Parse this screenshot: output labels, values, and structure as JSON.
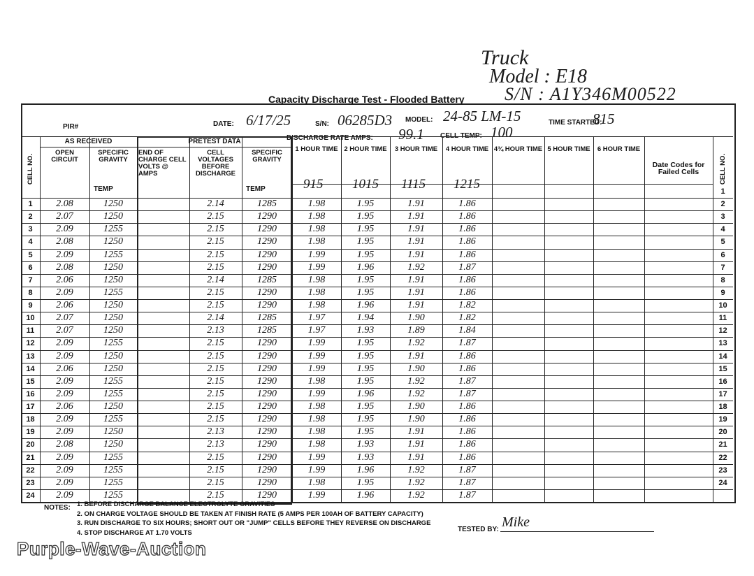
{
  "handwritten_note": {
    "line1": "Truck",
    "line2": "Model : E18",
    "line3": "S/N : A1Y346M00522"
  },
  "header": {
    "title": "Capacity Discharge Test - Flooded Battery",
    "fields": [
      {
        "label": "PIR#"
      },
      {
        "label": "DATE:",
        "value": "6/17/25"
      },
      {
        "label": "S/N:",
        "value": "06285D3"
      },
      {
        "label": "MODEL:",
        "value": "24-85 LM-15"
      },
      {
        "label": "TIME STARTED:",
        "value": "815"
      },
      {
        "label": "DISCHARGE RATE AMPS:",
        "value": "99.1"
      },
      {
        "label": "CELL TEMP:",
        "value": "100"
      }
    ]
  },
  "table": {
    "groups": [
      "AS RECEIVED",
      "PRETEST DATA"
    ],
    "columns": [
      {
        "label": "CELL NO."
      },
      {
        "label": "OPEN CIRCUIT"
      },
      {
        "label": "SPECIFIC GRAVITY",
        "sub": "TEMP"
      },
      {
        "label": "END OF CHARGE CELL VOLTS @ AMPS"
      },
      {
        "label": "CELL VOLTAGES BEFORE DISCHARGE"
      },
      {
        "label": "SPECIFIC GRAVITY",
        "sub": "TEMP"
      },
      {
        "label": "1 HOUR TIME",
        "time": "915"
      },
      {
        "label": "2 HOUR TIME",
        "time": "1015"
      },
      {
        "label": "3 HOUR TIME",
        "time": "1115"
      },
      {
        "label": "4 HOUR TIME",
        "time": "1215"
      },
      {
        "label": "4¾ HOUR TIME"
      },
      {
        "label": "5 HOUR TIME"
      },
      {
        "label": "6 HOUR TIME"
      },
      {
        "label": "Date Codes for Failed Cells"
      },
      {
        "label": "CELL NO."
      }
    ],
    "rows": [
      [
        "1",
        "2.08",
        "1250",
        "2.14",
        "1285",
        "1.98",
        "1.95",
        "1.91",
        "1.86"
      ],
      [
        "2",
        "2.07",
        "1250",
        "2.15",
        "1290",
        "1.98",
        "1.95",
        "1.91",
        "1.86"
      ],
      [
        "3",
        "2.09",
        "1255",
        "2.15",
        "1290",
        "1.98",
        "1.95",
        "1.91",
        "1.86"
      ],
      [
        "4",
        "2.08",
        "1250",
        "2.15",
        "1290",
        "1.98",
        "1.95",
        "1.91",
        "1.86"
      ],
      [
        "5",
        "2.09",
        "1255",
        "2.15",
        "1290",
        "1.99",
        "1.95",
        "1.91",
        "1.86"
      ],
      [
        "6",
        "2.08",
        "1250",
        "2.15",
        "1290",
        "1.99",
        "1.96",
        "1.92",
        "1.87"
      ],
      [
        "7",
        "2.06",
        "1250",
        "2.14",
        "1285",
        "1.98",
        "1.95",
        "1.91",
        "1.86"
      ],
      [
        "8",
        "2.09",
        "1255",
        "2.15",
        "1290",
        "1.98",
        "1.95",
        "1.91",
        "1.86"
      ],
      [
        "9",
        "2.06",
        "1250",
        "2.15",
        "1290",
        "1.98",
        "1.96",
        "1.91",
        "1.82"
      ],
      [
        "10",
        "2.07",
        "1250",
        "2.14",
        "1285",
        "1.97",
        "1.94",
        "1.90",
        "1.82"
      ],
      [
        "11",
        "2.07",
        "1250",
        "2.13",
        "1285",
        "1.97",
        "1.93",
        "1.89",
        "1.84"
      ],
      [
        "12",
        "2.09",
        "1255",
        "2.15",
        "1290",
        "1.99",
        "1.95",
        "1.92",
        "1.87"
      ],
      [
        "13",
        "2.09",
        "1250",
        "2.15",
        "1290",
        "1.99",
        "1.95",
        "1.91",
        "1.86"
      ],
      [
        "14",
        "2.06",
        "1250",
        "2.15",
        "1290",
        "1.99",
        "1.95",
        "1.90",
        "1.86"
      ],
      [
        "15",
        "2.09",
        "1255",
        "2.15",
        "1290",
        "1.98",
        "1.95",
        "1.92",
        "1.87"
      ],
      [
        "16",
        "2.09",
        "1255",
        "2.15",
        "1290",
        "1.99",
        "1.96",
        "1.92",
        "1.87"
      ],
      [
        "17",
        "2.06",
        "1250",
        "2.15",
        "1290",
        "1.98",
        "1.95",
        "1.90",
        "1.86"
      ],
      [
        "18",
        "2.09",
        "1255",
        "2.15",
        "1290",
        "1.98",
        "1.95",
        "1.90",
        "1.86"
      ],
      [
        "19",
        "2.09",
        "1250",
        "2.13",
        "1290",
        "1.98",
        "1.95",
        "1.91",
        "1.86"
      ],
      [
        "20",
        "2.08",
        "1250",
        "2.13",
        "1290",
        "1.98",
        "1.93",
        "1.91",
        "1.86"
      ],
      [
        "21",
        "2.09",
        "1255",
        "2.15",
        "1290",
        "1.99",
        "1.93",
        "1.91",
        "1.86"
      ],
      [
        "22",
        "2.09",
        "1255",
        "2.15",
        "1290",
        "1.99",
        "1.96",
        "1.92",
        "1.87"
      ],
      [
        "23",
        "2.09",
        "1255",
        "2.15",
        "1290",
        "1.98",
        "1.95",
        "1.92",
        "1.87"
      ],
      [
        "24",
        "2.09",
        "1255",
        "2.15",
        "1290",
        "1.99",
        "1.96",
        "1.92",
        "1.87"
      ]
    ]
  },
  "notes": {
    "label": "NOTES:",
    "items": [
      "1. BEFORE DISCHARGE BALANCE ELECTROLYTE GRAVITIES",
      "2. ON CHARGE VOLTAGE SHOULD BE TAKEN AT FINISH RATE (5 AMPS PER 100AH OF BATTERY CAPACITY)",
      "3. RUN DISCHARGE TO SIX HOURS; SHORT OUT OR \"JUMP\" CELLS BEFORE THEY REVERSE ON DISCHARGE",
      "4. STOP DISCHARGE AT 1.70 VOLTS"
    ]
  },
  "tested_by": {
    "label": "TESTED BY:",
    "value": "Mike"
  },
  "watermark": "Purple-Wave-Auction"
}
